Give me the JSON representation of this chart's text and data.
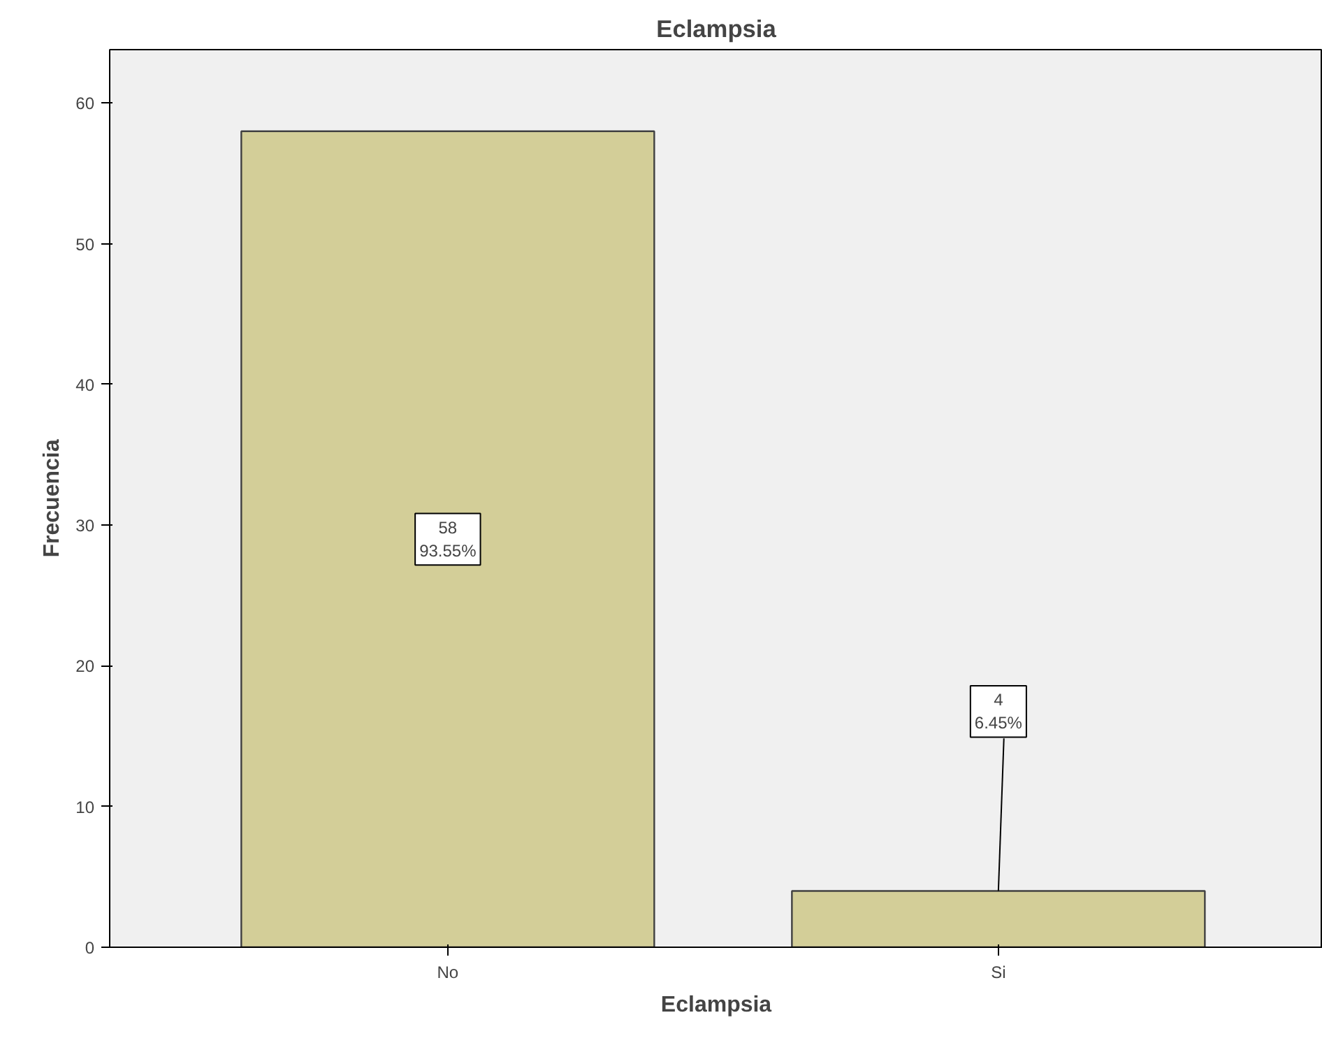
{
  "chart_data": {
    "type": "bar",
    "title": "Eclampsia",
    "xlabel": "Eclampsia",
    "ylabel": "Frecuencia",
    "categories": [
      "No",
      "Si"
    ],
    "values": [
      58,
      4
    ],
    "value_labels": [
      "58\n93.55%",
      "4\n6.45%"
    ],
    "color": "#d3ce98",
    "ylim": [
      0,
      63.8
    ],
    "yticks": [
      0,
      10,
      20,
      30,
      40,
      50,
      60
    ],
    "grid": false
  }
}
